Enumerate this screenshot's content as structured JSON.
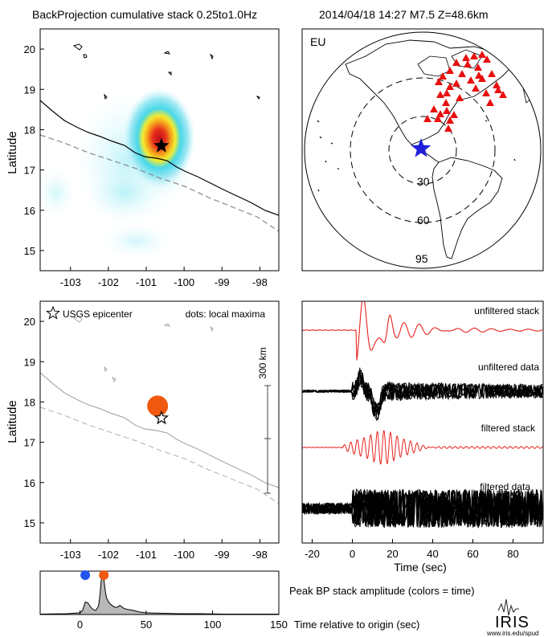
{
  "header": {
    "title": "BackProjection cumulative stack 0.25to1.0Hz",
    "info": "2014/04/18 14:27   M7.5   Z=48.6km"
  },
  "colors": {
    "stack_line": "#e8221c",
    "data_line": "#000000",
    "epicenter_star_globe": "#1f1fdc",
    "stations": "#e81010",
    "maxima_dot": "#f05a10",
    "early_dot": "#2255ee",
    "amplitude_fill": "#b8b8b8",
    "heat_core": "#d4141c",
    "heat_outer": "#bff2f8"
  },
  "map_top": {
    "ylabel": "Latitude",
    "xticks": [
      "-103",
      "-102",
      "-101",
      "-100",
      "-99",
      "-98"
    ],
    "yticks": [
      "20",
      "19",
      "18",
      "17",
      "16",
      "15"
    ]
  },
  "globe": {
    "label": "EU",
    "ring_labels": [
      "30",
      "60",
      "95"
    ]
  },
  "map_bottom": {
    "ylabel": "Latitude",
    "xticks": [
      "-103",
      "-102",
      "-101",
      "-100",
      "-99",
      "-98"
    ],
    "yticks": [
      "20",
      "19",
      "18",
      "17",
      "16",
      "15"
    ],
    "legend_epicenter": "USGS epicenter",
    "legend_dots": "dots: local maxima",
    "scale_label": "300 km"
  },
  "traces": {
    "labels": [
      "unfiltered stack",
      "unfiltered data",
      "filtered stack",
      "filtered data"
    ],
    "xticks": [
      "-20",
      "0",
      "20",
      "40",
      "60",
      "80"
    ],
    "xlabel": "Time (sec)"
  },
  "amplitude": {
    "xticks": [
      "0",
      "50",
      "100",
      "150"
    ],
    "caption": "Peak BP stack amplitude (colors = time)",
    "xlabel": "Time relative to origin (sec)"
  },
  "logo": {
    "name": "IRIS",
    "url": "www.iris.edu/spud"
  },
  "chart_data": [
    {
      "type": "heatmap",
      "epicenter": {
        "lon": -100.6,
        "lat": 17.6
      },
      "peak": {
        "lon": -100.7,
        "lat": 17.8
      },
      "xlim": [
        -103.8,
        -97.5
      ],
      "ylim": [
        14.5,
        20.5
      ]
    },
    {
      "type": "scatter",
      "epicenter": {
        "lon": -100.6,
        "lat": 17.6
      },
      "local_maxima": [
        {
          "lon": -100.7,
          "lat": 17.9
        }
      ],
      "xlim": [
        -103.8,
        -97.5
      ],
      "ylim": [
        14.5,
        20.5
      ]
    },
    {
      "type": "line",
      "xlim": [
        -25,
        95
      ],
      "series": [
        {
          "name": "unfiltered stack"
        },
        {
          "name": "unfiltered data"
        },
        {
          "name": "filtered stack"
        },
        {
          "name": "filtered data"
        }
      ]
    },
    {
      "type": "area",
      "xlim": [
        -30,
        150
      ],
      "x": [
        -30,
        -10,
        0,
        2,
        4,
        6,
        8,
        10,
        12,
        14,
        15,
        16,
        17,
        18,
        19,
        20,
        22,
        24,
        26,
        28,
        30,
        33,
        36,
        40,
        45,
        50,
        60,
        75,
        90,
        110,
        130,
        150
      ],
      "values": [
        0.01,
        0.02,
        0.04,
        0.1,
        0.3,
        0.28,
        0.18,
        0.12,
        0.1,
        0.2,
        0.45,
        0.8,
        1.0,
        0.85,
        0.6,
        0.4,
        0.28,
        0.22,
        0.18,
        0.17,
        0.22,
        0.15,
        0.12,
        0.1,
        0.06,
        0.04,
        0.03,
        0.02,
        0.02,
        0.01,
        0.01,
        0.01
      ],
      "markers": [
        {
          "time": 4,
          "color": "blue"
        },
        {
          "time": 18,
          "color": "orange"
        }
      ]
    }
  ]
}
